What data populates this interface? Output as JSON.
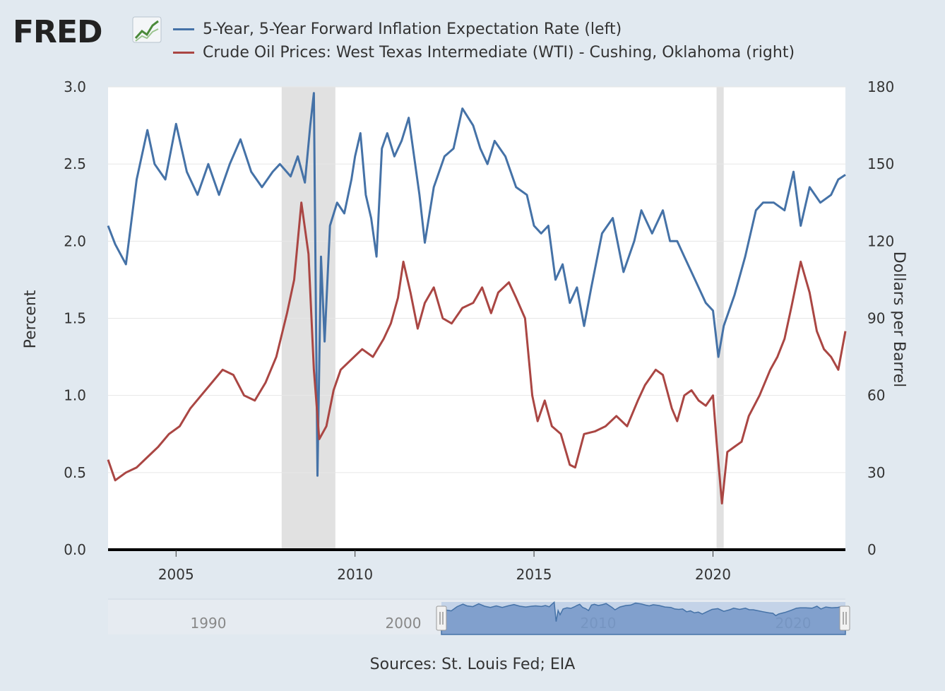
{
  "logo": {
    "text": "FRED"
  },
  "colors": {
    "series1": "#4572a7",
    "series2": "#aa4643",
    "recession": "#e1e1e1",
    "plot_bg": "#ffffff",
    "page_bg": "#e1e9f0",
    "navigator_fill": "#a8bfe0",
    "navigator_line": "#4572a7"
  },
  "legend": [
    {
      "label": "5-Year, 5-Year Forward Inflation Expectation Rate (left)"
    },
    {
      "label": "Crude Oil Prices: West Texas Intermediate (WTI) - Cushing, Oklahoma (right)"
    }
  ],
  "chart_data": {
    "type": "line",
    "x_range": [
      2003.1,
      2023.7
    ],
    "x_ticks": [
      "2005",
      "2010",
      "2015",
      "2020"
    ],
    "x_tick_values": [
      2005,
      2010,
      2015,
      2020
    ],
    "left_axis": {
      "title": "Percent",
      "range": [
        0,
        3
      ],
      "ticks": [
        "0.0",
        "0.5",
        "1.0",
        "1.5",
        "2.0",
        "2.5",
        "3.0"
      ]
    },
    "right_axis": {
      "title": "Dollars per Barrel",
      "range": [
        0,
        180
      ],
      "ticks": [
        "0",
        "30",
        "60",
        "90",
        "120",
        "150",
        "180"
      ]
    },
    "recessions": [
      [
        2007.95,
        2009.45
      ],
      [
        2020.1,
        2020.3
      ]
    ],
    "series": [
      {
        "name": "5-Year, 5-Year Forward Inflation Expectation Rate",
        "axis": "left",
        "x": [
          2003.1,
          2003.3,
          2003.6,
          2003.9,
          2004.2,
          2004.4,
          2004.7,
          2005.0,
          2005.3,
          2005.6,
          2005.9,
          2006.2,
          2006.5,
          2006.8,
          2007.1,
          2007.4,
          2007.7,
          2007.9,
          2008.2,
          2008.4,
          2008.6,
          2008.75,
          2008.85,
          2008.95,
          2009.05,
          2009.15,
          2009.3,
          2009.5,
          2009.7,
          2009.9,
          2010.0,
          2010.15,
          2010.3,
          2010.45,
          2010.6,
          2010.75,
          2010.9,
          2011.1,
          2011.3,
          2011.5,
          2011.65,
          2011.8,
          2011.95,
          2012.2,
          2012.5,
          2012.75,
          2013.0,
          2013.3,
          2013.5,
          2013.7,
          2013.9,
          2014.2,
          2014.5,
          2014.8,
          2015.0,
          2015.2,
          2015.4,
          2015.6,
          2015.8,
          2016.0,
          2016.2,
          2016.4,
          2016.6,
          2016.9,
          2017.2,
          2017.5,
          2017.8,
          2018.0,
          2018.3,
          2018.6,
          2018.8,
          2019.0,
          2019.2,
          2019.5,
          2019.8,
          2020.0,
          2020.15,
          2020.3,
          2020.6,
          2020.9,
          2021.2,
          2021.4,
          2021.7,
          2022.0,
          2022.25,
          2022.45,
          2022.7,
          2023.0,
          2023.3,
          2023.5,
          2023.7
        ],
        "values": [
          2.1,
          1.98,
          1.85,
          2.4,
          2.72,
          2.5,
          2.4,
          2.76,
          2.45,
          2.3,
          2.5,
          2.3,
          2.5,
          2.66,
          2.45,
          2.35,
          2.45,
          2.5,
          2.42,
          2.55,
          2.38,
          2.75,
          2.96,
          0.48,
          1.9,
          1.35,
          2.1,
          2.25,
          2.18,
          2.4,
          2.55,
          2.7,
          2.3,
          2.15,
          1.9,
          2.6,
          2.7,
          2.55,
          2.65,
          2.8,
          2.55,
          2.3,
          1.99,
          2.35,
          2.55,
          2.6,
          2.86,
          2.75,
          2.6,
          2.5,
          2.65,
          2.55,
          2.35,
          2.3,
          2.1,
          2.05,
          2.1,
          1.75,
          1.85,
          1.6,
          1.7,
          1.45,
          1.7,
          2.05,
          2.15,
          1.8,
          2.0,
          2.2,
          2.05,
          2.2,
          2.0,
          2.0,
          1.9,
          1.75,
          1.6,
          1.55,
          1.25,
          1.45,
          1.65,
          1.9,
          2.2,
          2.25,
          2.25,
          2.2,
          2.45,
          2.1,
          2.35,
          2.25,
          2.3,
          2.4,
          2.43
        ]
      },
      {
        "name": "Crude Oil Prices: West Texas Intermediate (WTI) - Cushing, Oklahoma",
        "axis": "right",
        "x": [
          2003.1,
          2003.3,
          2003.6,
          2003.9,
          2004.2,
          2004.5,
          2004.8,
          2005.1,
          2005.4,
          2005.7,
          2006.0,
          2006.3,
          2006.6,
          2006.9,
          2007.2,
          2007.5,
          2007.8,
          2008.1,
          2008.3,
          2008.5,
          2008.7,
          2008.85,
          2009.0,
          2009.2,
          2009.4,
          2009.6,
          2009.9,
          2010.2,
          2010.5,
          2010.8,
          2011.0,
          2011.2,
          2011.35,
          2011.55,
          2011.75,
          2011.95,
          2012.2,
          2012.45,
          2012.7,
          2013.0,
          2013.3,
          2013.55,
          2013.8,
          2014.0,
          2014.3,
          2014.5,
          2014.75,
          2014.95,
          2015.1,
          2015.3,
          2015.5,
          2015.75,
          2016.0,
          2016.15,
          2016.4,
          2016.7,
          2017.0,
          2017.3,
          2017.6,
          2017.9,
          2018.1,
          2018.4,
          2018.6,
          2018.85,
          2019.0,
          2019.2,
          2019.4,
          2019.6,
          2019.8,
          2020.0,
          2020.1,
          2020.25,
          2020.4,
          2020.6,
          2020.8,
          2021.0,
          2021.3,
          2021.6,
          2021.8,
          2022.0,
          2022.2,
          2022.45,
          2022.7,
          2022.9,
          2023.1,
          2023.3,
          2023.5,
          2023.7
        ],
        "values": [
          35,
          27,
          30,
          32,
          36,
          40,
          45,
          48,
          55,
          60,
          65,
          70,
          68,
          60,
          58,
          65,
          75,
          92,
          105,
          135,
          115,
          70,
          43,
          48,
          62,
          70,
          74,
          78,
          75,
          82,
          88,
          98,
          112,
          100,
          86,
          96,
          102,
          90,
          88,
          94,
          96,
          102,
          92,
          100,
          104,
          98,
          90,
          60,
          50,
          58,
          48,
          45,
          33,
          32,
          45,
          46,
          48,
          52,
          48,
          58,
          64,
          70,
          68,
          55,
          50,
          60,
          62,
          58,
          56,
          60,
          42,
          18,
          38,
          40,
          42,
          52,
          60,
          70,
          75,
          82,
          95,
          112,
          100,
          85,
          78,
          75,
          70,
          85
        ]
      }
    ]
  },
  "navigator": {
    "labels": [
      "1990",
      "2000",
      "2010",
      "2020"
    ]
  },
  "sources": "Sources: St. Louis Fed; EIA"
}
